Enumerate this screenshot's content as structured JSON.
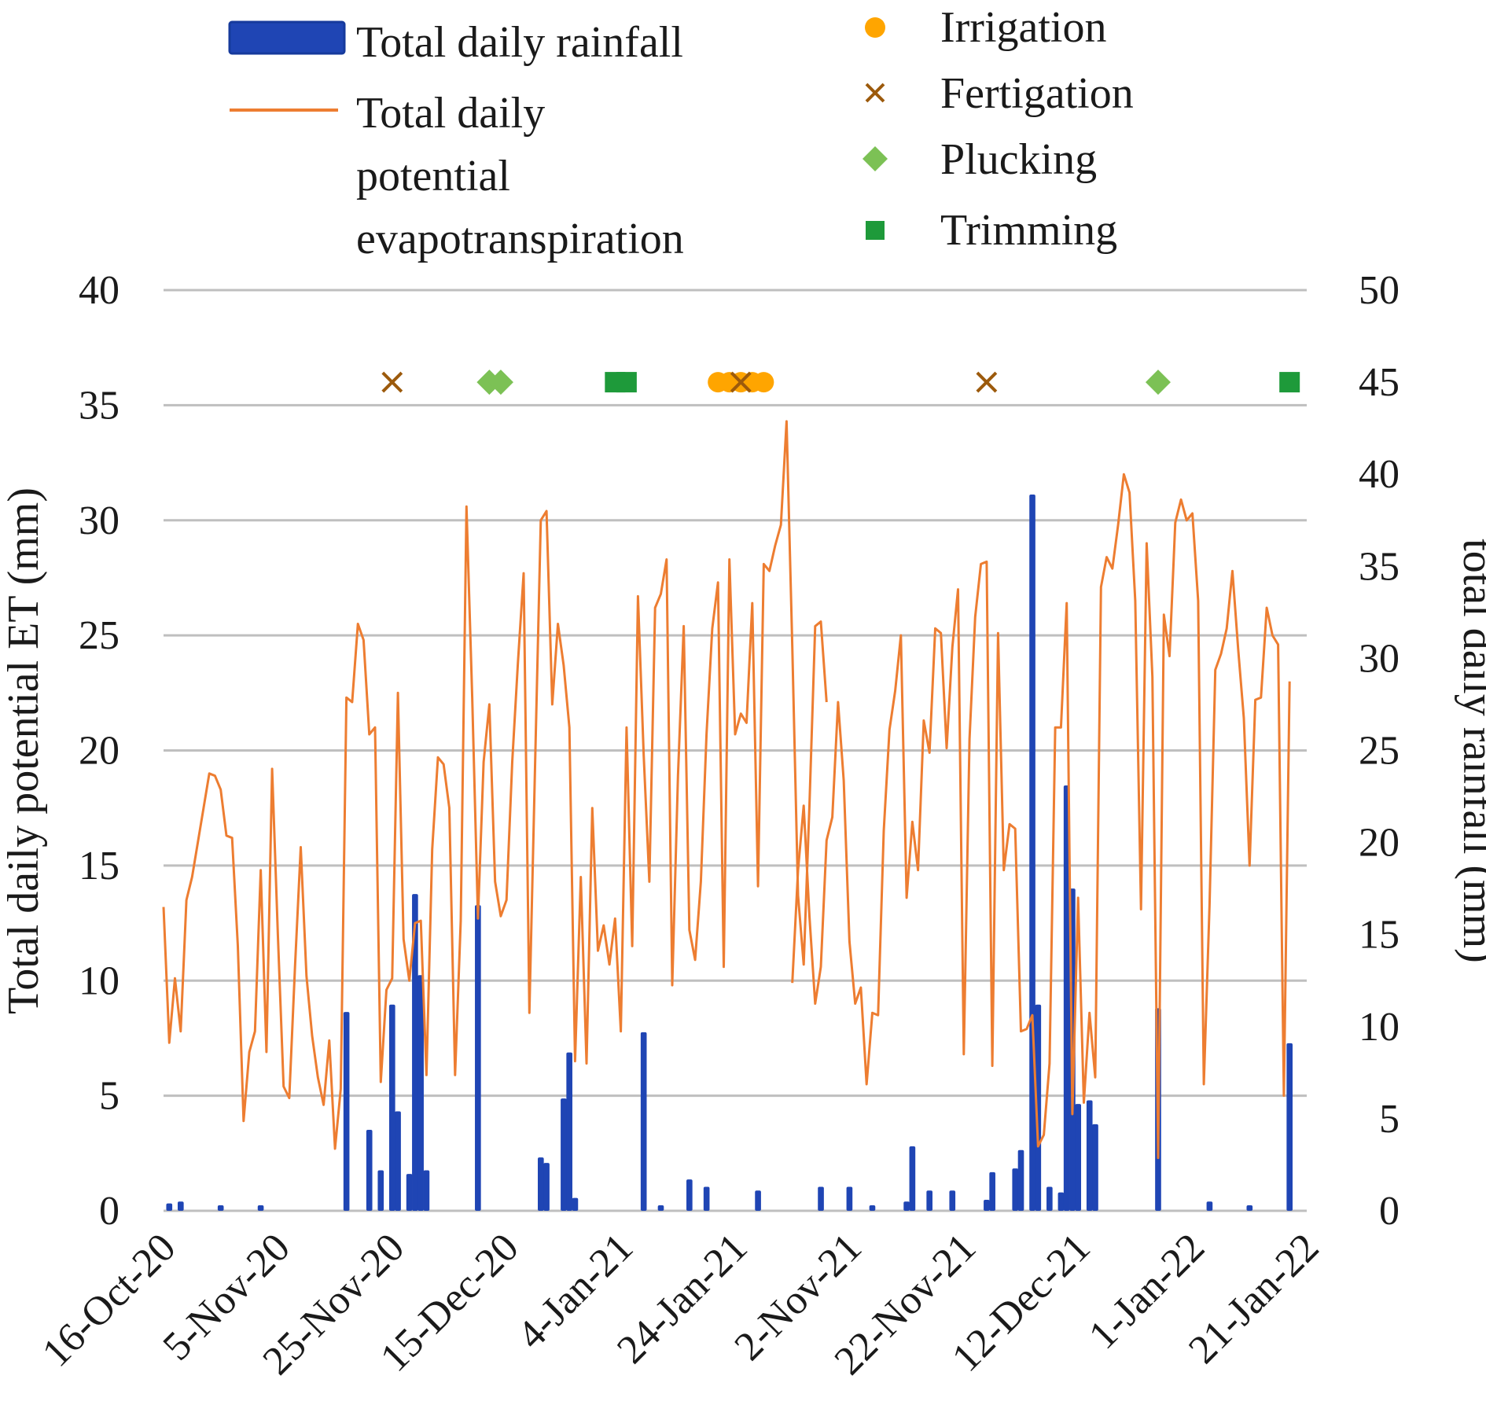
{
  "chart_data": {
    "type": "combo-bar-line-scatter",
    "y_left": {
      "label": "Total daily potential ET (mm)",
      "lim": [
        0,
        40
      ],
      "ticks": [
        "0",
        "5",
        "10",
        "15",
        "20",
        "25",
        "30",
        "35",
        "40"
      ]
    },
    "y_right": {
      "label": "total daily rainfall (mm)",
      "lim": [
        0,
        50
      ],
      "ticks": [
        "0",
        "5",
        "10",
        "15",
        "20",
        "25",
        "30",
        "35",
        "40",
        "45",
        "50"
      ]
    },
    "x_tick_labels": [
      "16-Oct-20",
      "5-Nov-20",
      "25-Nov-20",
      "15-Dec-20",
      "4-Jan-21",
      "24-Jan-21",
      "2-Nov-21",
      "22-Nov-21",
      "12-Dec-21",
      "1-Jan-22",
      "21-Jan-22"
    ],
    "x_days": 200,
    "legend": {
      "rainfall": "Total daily rainfall",
      "et_lines": [
        "Total daily",
        "potential",
        "evapotranspiration"
      ],
      "irrigation": "Irrigation",
      "fertigation": "Fertigation",
      "plucking": "Plucking",
      "trimming": "Trimming"
    },
    "colors": {
      "rainfall": "#1f45b4",
      "et": "#ed7d31",
      "irrigation": "#ffa500",
      "fertigation": "#9c5a0c",
      "plucking": "#7cc155",
      "trimming": "#1e9a3a",
      "grid": "#bfbfbf"
    },
    "et_series": [
      {
        "name": "Total daily potential evapotranspiration",
        "x_start": 0,
        "values": [
          13.2,
          7.3,
          10.1,
          7.8,
          13.5,
          14.5,
          16,
          17.5,
          19,
          18.9,
          18.3,
          16.3,
          16.2,
          11.5,
          3.9,
          6.9,
          7.8,
          14.8,
          6.9,
          19.2,
          12,
          5.4,
          4.9,
          10.6,
          15.8,
          10.2,
          7.6,
          5.8,
          4.6,
          7.4,
          2.7,
          5.3,
          22.3,
          22.1,
          25.5,
          24.8,
          20.7,
          21,
          5.6,
          9.6,
          10.1,
          22.5,
          11.8,
          10,
          12.5,
          12.6,
          5.9,
          15.7,
          19.7,
          19.4,
          17.5,
          5.9,
          12.6,
          30.6,
          22.3,
          12.7,
          19.5,
          22,
          14.3,
          12.8,
          13.5,
          19.5,
          23.8,
          27.7,
          8.6,
          19.3,
          30,
          30.4,
          22,
          25.5,
          23.7,
          21,
          6.5,
          14.5,
          6.4,
          17.5,
          11.3,
          12.4,
          10.7,
          12.7,
          7.8,
          21,
          11.5,
          26.7,
          19.8,
          14.3,
          26.2,
          26.8,
          28.3,
          9.8,
          18.9,
          25.4,
          12.2,
          10.9,
          14.3,
          20.7,
          25.3,
          27.3,
          10.6,
          28.3,
          20.7,
          21.6,
          21.2,
          26.4,
          14.1,
          28.1,
          27.8,
          28.9,
          29.8,
          34.3,
          24.5,
          13.7,
          10.7,
          17.6,
          25.4,
          25.6,
          22.1
        ]
      },
      {
        "name": "Total daily potential evapotranspiration",
        "x_start": 110,
        "values": [
          9.9,
          14.8,
          17.6,
          12.8,
          9,
          10.6,
          16.1,
          17.1,
          22.1,
          18.7,
          11.7,
          9,
          9.7,
          5.5,
          8.6,
          8.5,
          16.5,
          20.9,
          22.6,
          25,
          13.6,
          16.9,
          14.8,
          21.3,
          19.9,
          25.3,
          25.1,
          20.1,
          24.5,
          27,
          6.8,
          20.5,
          25.8,
          28.1,
          28.2,
          6.3,
          25.1,
          14.8,
          16.8,
          16.6,
          7.8,
          7.9,
          8.5,
          2.8,
          3.3,
          6.4,
          21,
          21,
          26.4,
          4.2,
          13.6,
          4.7,
          8.6,
          5.8,
          27.1,
          28.4,
          27.9,
          29.8,
          32,
          31.2,
          26.5,
          13.1,
          29,
          23.2,
          2.3,
          25.9,
          24.1,
          29.9,
          30.9,
          30,
          30.3,
          26.5,
          5.5,
          13.3,
          23.5,
          24.2,
          25.3,
          27.8,
          24.4,
          21.4,
          15,
          22.2,
          22.3,
          26.2,
          25,
          24.6,
          5,
          23
        ]
      }
    ],
    "rainfall_bars": [
      {
        "day": 1,
        "value": 0.4
      },
      {
        "day": 3,
        "value": 0.5
      },
      {
        "day": 10,
        "value": 0.3
      },
      {
        "day": 17,
        "value": 0.3
      },
      {
        "day": 32,
        "value": 10.8
      },
      {
        "day": 36,
        "value": 4.4
      },
      {
        "day": 38,
        "value": 2.2
      },
      {
        "day": 40,
        "value": 11.2
      },
      {
        "day": 41,
        "value": 5.4
      },
      {
        "day": 43,
        "value": 2
      },
      {
        "day": 44,
        "value": 17.2
      },
      {
        "day": 45,
        "value": 12.8
      },
      {
        "day": 46,
        "value": 2.2
      },
      {
        "day": 55,
        "value": 16.6
      },
      {
        "day": 66,
        "value": 2.9
      },
      {
        "day": 67,
        "value": 2.6
      },
      {
        "day": 70,
        "value": 6.1
      },
      {
        "day": 71,
        "value": 8.6
      },
      {
        "day": 72,
        "value": 0.7
      },
      {
        "day": 84,
        "value": 9.7
      },
      {
        "day": 87,
        "value": 0.3
      },
      {
        "day": 92,
        "value": 1.7
      },
      {
        "day": 95,
        "value": 1.3
      },
      {
        "day": 104,
        "value": 1.1
      },
      {
        "day": 115,
        "value": 1.3
      },
      {
        "day": 120,
        "value": 1.3
      },
      {
        "day": 124,
        "value": 0.3
      },
      {
        "day": 130,
        "value": 0.5
      },
      {
        "day": 131,
        "value": 3.5
      },
      {
        "day": 134,
        "value": 1.1
      },
      {
        "day": 138,
        "value": 1.1
      },
      {
        "day": 144,
        "value": 0.6
      },
      {
        "day": 145,
        "value": 2.1
      },
      {
        "day": 149,
        "value": 2.3
      },
      {
        "day": 150,
        "value": 3.3
      },
      {
        "day": 152,
        "value": 38.9
      },
      {
        "day": 153,
        "value": 11.2
      },
      {
        "day": 155,
        "value": 1.3
      },
      {
        "day": 157,
        "value": 1
      },
      {
        "day": 158,
        "value": 23.1
      },
      {
        "day": 159,
        "value": 17.5
      },
      {
        "day": 160,
        "value": 5.8
      },
      {
        "day": 162,
        "value": 6
      },
      {
        "day": 163,
        "value": 4.7
      },
      {
        "day": 174,
        "value": 11
      },
      {
        "day": 183,
        "value": 0.5
      },
      {
        "day": 190,
        "value": 0.3
      },
      {
        "day": 197,
        "value": 9.1
      }
    ],
    "events": {
      "irrigation": {
        "days": [
          97,
          99,
          101,
          103,
          105
        ],
        "value": 45
      },
      "fertigation": {
        "days": [
          40,
          101,
          144
        ],
        "value": 45
      },
      "plucking": {
        "days": [
          57,
          59,
          174
        ],
        "value": 45
      },
      "trimming": {
        "days": [
          79,
          81,
          197
        ],
        "value": 45
      }
    }
  }
}
